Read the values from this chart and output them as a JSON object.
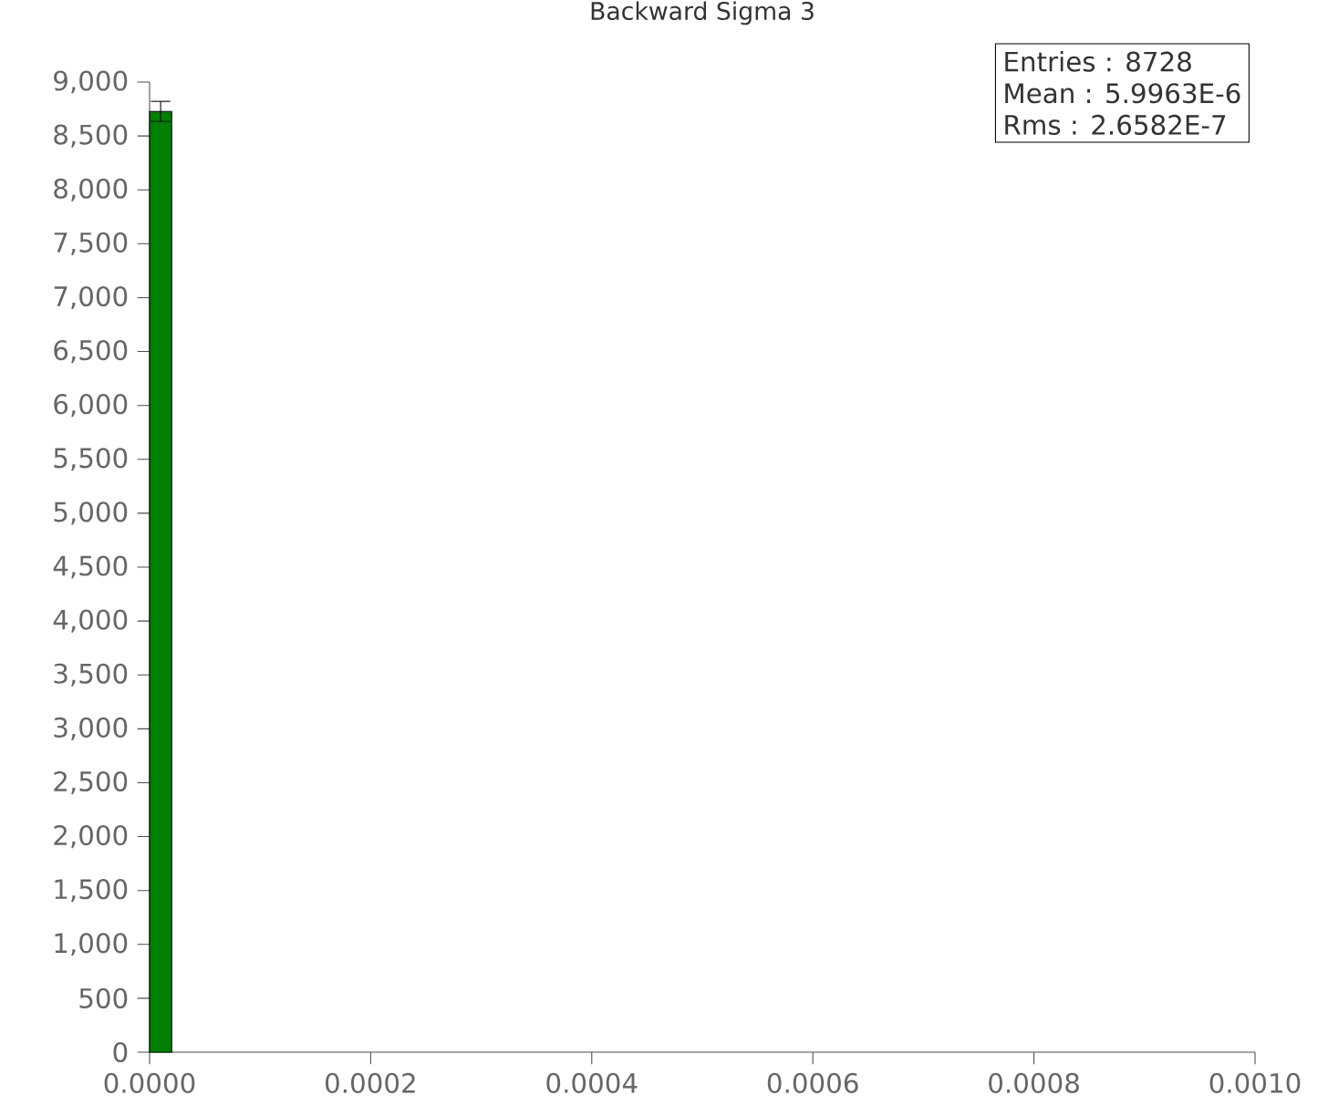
{
  "chart_data": {
    "type": "histogram",
    "title": "Backward Sigma 3",
    "bins": [
      0,
      2e-05
    ],
    "values": [
      8728
    ],
    "errors": [
      93
    ],
    "color": "#008000",
    "xlim": [
      0,
      0.001
    ],
    "xticks": [
      {
        "value": 0,
        "label": "0.0000"
      },
      {
        "value": 0.0002,
        "label": "0.0002"
      },
      {
        "value": 0.0004,
        "label": "0.0004"
      },
      {
        "value": 0.0006,
        "label": "0.0006"
      },
      {
        "value": 0.0008,
        "label": "0.0008"
      },
      {
        "value": 0.001,
        "label": "0.0010"
      }
    ],
    "ylim": [
      0,
      9000
    ],
    "yticks": [
      0,
      500,
      {
        "value": 1000,
        "label": "1,000"
      },
      {
        "value": 1500,
        "label": "1,500"
      },
      {
        "value": 2000,
        "label": "2,000"
      },
      {
        "value": 2500,
        "label": "2,500"
      },
      {
        "value": 3000,
        "label": "3,000"
      },
      {
        "value": 3500,
        "label": "3,500"
      },
      {
        "value": 4000,
        "label": "4,000"
      },
      {
        "value": 4500,
        "label": "4,500"
      },
      {
        "value": 5000,
        "label": "5,000"
      },
      {
        "value": 5500,
        "label": "5,500"
      },
      {
        "value": 6000,
        "label": "6,000"
      },
      {
        "value": 6500,
        "label": "6,500"
      },
      {
        "value": 7000,
        "label": "7,000"
      },
      {
        "value": 7500,
        "label": "7,500"
      },
      {
        "value": 8000,
        "label": "8,000"
      },
      {
        "value": 8500,
        "label": "8,500"
      },
      {
        "value": 9000,
        "label": "9,000"
      }
    ],
    "annotations": [
      "Entries :        8728",
      "Mean : 5.9963E-6",
      "Rms :  2.6582E-7"
    ]
  }
}
